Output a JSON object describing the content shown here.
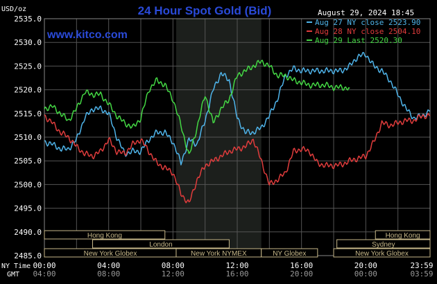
{
  "chart_data": {
    "type": "line",
    "title": "24 Hour Spot Gold (Bid)",
    "watermark": "www.kitco.com",
    "datetime": "August 29, 2024 18:45",
    "ylabel": "USD/oz",
    "ylim": [
      2485,
      2535
    ],
    "y_ticks": [
      "2535.0",
      "2530.0",
      "2525.0",
      "2520.0",
      "2515.0",
      "2510.0",
      "2505.0",
      "2500.0",
      "2495.0",
      "2490.0",
      "2485.0"
    ],
    "xlim": [
      0,
      24
    ],
    "x_axis_label": "NY Time",
    "x_axis_label2": "GMT",
    "x_ticks": [
      "00:00",
      "04:00",
      "08:00",
      "12:00",
      "16:00",
      "20:00",
      "23:59"
    ],
    "x_ticks_gmt": [
      "04:00",
      "08:00",
      "12:00",
      "16:00",
      "20:00",
      "00:00",
      "03:59"
    ],
    "highlight_hours": [
      8.2,
      13.5
    ],
    "colors": {
      "background": "#000000",
      "grid": "#555555",
      "axis_text": "#ffffff",
      "title": "#2a4ad8",
      "highlight": "#1c1f1c",
      "session_border": "#c8b98a"
    },
    "series": [
      {
        "name": "Aug 27 NY close 2523.90",
        "color": "#4fb4ea",
        "x": [
          0,
          0.5,
          1,
          1.5,
          2,
          2.5,
          3,
          3.5,
          4,
          4.5,
          5,
          5.5,
          6,
          6.5,
          7,
          7.5,
          8,
          8.5,
          9,
          9.5,
          10,
          10.5,
          11,
          11.5,
          12,
          12.5,
          13,
          13.5,
          14,
          14.5,
          15,
          15.5,
          16,
          16.5,
          17,
          17.5,
          18,
          18.5,
          19,
          19.5,
          20,
          20.5,
          21,
          21.5,
          22,
          22.5,
          23,
          23.5,
          24
        ],
        "y": [
          2509,
          2508.5,
          2507.5,
          2507.5,
          2509.5,
          2514,
          2516,
          2516,
          2515,
          2510,
          2506.5,
          2507,
          2507,
          2509.5,
          2511,
          2511,
          2509,
          2504.5,
          2509.5,
          2508.5,
          2513.5,
          2520,
          2523.5,
          2522,
          2514,
          2511,
          2511,
          2512,
          2514.5,
          2518,
          2523,
          2524.5,
          2524,
          2524,
          2524,
          2524,
          2524,
          2524,
          2525,
          2527,
          2527.5,
          2525,
          2524,
          2522,
          2519,
          2516,
          2514,
          2514.5,
          2515.5
        ]
      },
      {
        "name": "Aug 28 NY close 2504.10",
        "color": "#e03c3c",
        "x": [
          0,
          0.5,
          1,
          1.5,
          2,
          2.5,
          3,
          3.5,
          4,
          4.5,
          5,
          5.5,
          6,
          6.5,
          7,
          7.5,
          8,
          8.5,
          9,
          9.5,
          10,
          10.5,
          11,
          11.5,
          12,
          12.5,
          13,
          13.5,
          14,
          14.5,
          15,
          15.5,
          16,
          16.5,
          17,
          17.5,
          18,
          18.5,
          19,
          19.5,
          20,
          20.5,
          21,
          21.5,
          22,
          22.5,
          23,
          23.5,
          24
        ],
        "y": [
          2514.5,
          2513,
          2511,
          2510,
          2508,
          2506.5,
          2506,
          2507,
          2509.5,
          2507,
          2506.5,
          2508.5,
          2509.5,
          2507,
          2504.5,
          2503.5,
          2502.5,
          2498,
          2496,
          2501,
          2504,
          2505,
          2506,
          2507,
          2507.5,
          2508,
          2509.5,
          2505,
          2500,
          2501,
          2502.5,
          2507,
          2507.5,
          2507,
          2504.5,
          2504,
          2504,
          2504.2,
          2505,
          2505.5,
          2506,
          2509,
          2513,
          2512.5,
          2513,
          2513.5,
          2513.5,
          2514.5,
          2514.5
        ]
      },
      {
        "name": "Aug 29 Last 2520.30",
        "color": "#44d844",
        "x": [
          0,
          0.5,
          1,
          1.5,
          2,
          2.5,
          3,
          3.5,
          4,
          4.5,
          5,
          5.5,
          6,
          6.5,
          7,
          7.5,
          8,
          8.5,
          9,
          9.5,
          10,
          10.5,
          11,
          11.5,
          12,
          12.5,
          13,
          13.5,
          14,
          14.5,
          15,
          15.5,
          16,
          16.5,
          17,
          17.5,
          18,
          18.5,
          19
        ],
        "y": [
          2516,
          2516.5,
          2515,
          2513.5,
          2516,
          2519.5,
          2519,
          2519,
          2517,
          2514.5,
          2513,
          2512,
          2514,
          2520,
          2522,
          2521,
          2518,
          2512.5,
          2506,
          2512,
          2519,
          2513,
          2516,
          2518,
          2523,
          2524,
          2525,
          2526,
          2525,
          2523,
          2523,
          2522,
          2521.5,
          2521,
          2521,
          2521,
          2520.5,
          2520.5,
          2520.3
        ]
      }
    ],
    "sessions": [
      {
        "label": "Hong Kong",
        "start": 0,
        "end": 7.5,
        "row": 0
      },
      {
        "label": "Hong Kong",
        "start": 20.6,
        "end": 24,
        "row": 0
      },
      {
        "label": "London",
        "start": 3,
        "end": 11.5,
        "row": 1
      },
      {
        "label": "Sydney",
        "start": 18.2,
        "end": 24,
        "row": 1
      },
      {
        "label": "New York Globex",
        "start": 0,
        "end": 8.2,
        "row": 2
      },
      {
        "label": "New York NYMEX",
        "start": 8.2,
        "end": 13.5,
        "row": 2
      },
      {
        "label": "NY Globex",
        "start": 13.5,
        "end": 17,
        "row": 2
      },
      {
        "label": "New York Globex",
        "start": 18,
        "end": 24,
        "row": 2
      }
    ]
  }
}
